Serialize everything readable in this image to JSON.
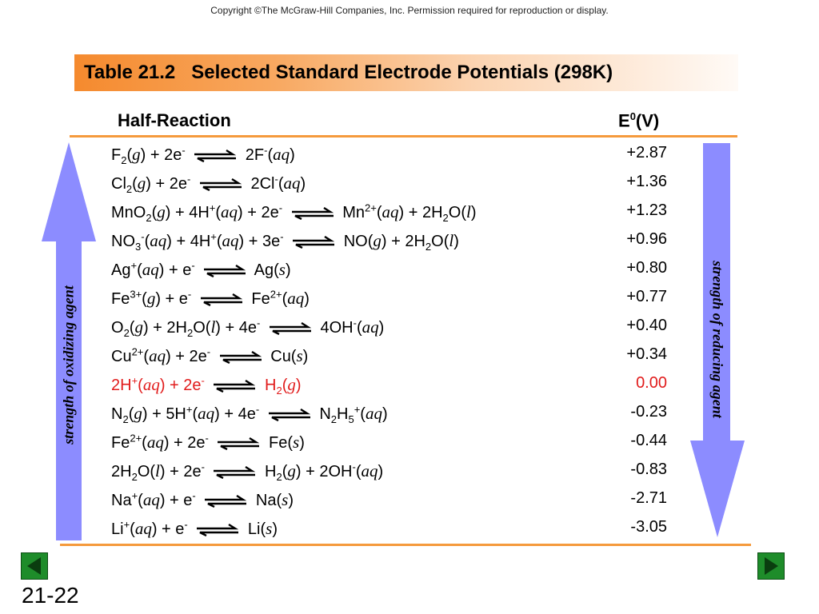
{
  "copyright": "Copyright ©The McGraw-Hill Companies, Inc.  Permission required for reproduction or display.",
  "title": "Table 21.2   Selected Standard Electrode Potentials (298K)",
  "columns": {
    "half_reaction": "Half-Reaction",
    "e0_prefix": "E",
    "e0_sup": "0",
    "e0_suffix": "(V)"
  },
  "rows": [
    {
      "potential": "+2.87"
    },
    {
      "potential": "+1.36"
    },
    {
      "potential": "+1.23"
    },
    {
      "potential": "+0.96"
    },
    {
      "potential": "+0.80"
    },
    {
      "potential": "+0.77"
    },
    {
      "potential": "+0.40"
    },
    {
      "potential": "+0.34"
    },
    {
      "potential": "0.00",
      "highlight_color": "#e11b1b"
    },
    {
      "potential": "-0.23"
    },
    {
      "potential": "-0.44"
    },
    {
      "potential": "-0.83"
    },
    {
      "potential": "-2.71"
    },
    {
      "potential": "-3.05"
    }
  ],
  "left_arrow_label": "strength of oxidizing agent",
  "right_arrow_label": "strength of reducing agent",
  "arrow_color": "#8c8cff",
  "accent_color": "#f59a3c",
  "page_number": "21-22",
  "nav": {
    "prev_icon": "triangle-left-icon",
    "next_icon": "triangle-right-icon"
  }
}
